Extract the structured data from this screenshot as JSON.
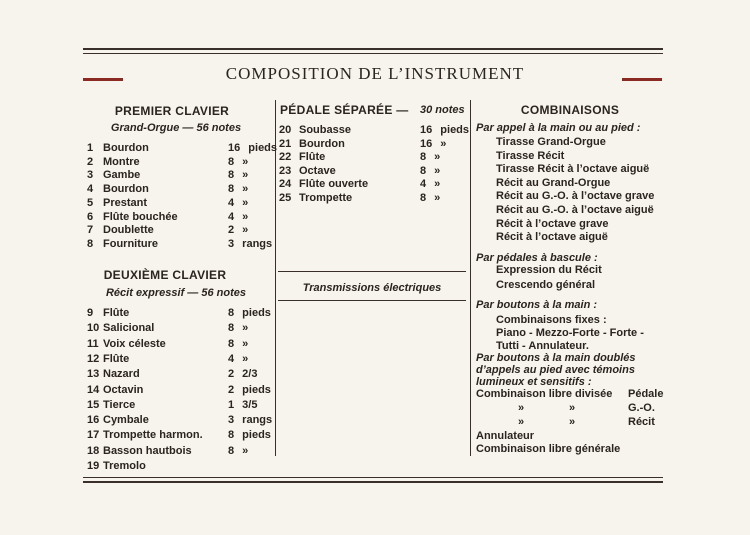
{
  "title": "COMPOSITION DE L’INSTRUMENT",
  "premier_clavier": {
    "heading": "PREMIER CLAVIER",
    "subtitle": "Grand-Orgue — 56 notes",
    "stops": [
      [
        1,
        "Bourdon",
        "16 pieds"
      ],
      [
        2,
        "Montre",
        "8 »"
      ],
      [
        3,
        "Gambe",
        "8 »"
      ],
      [
        4,
        "Bourdon",
        "8 »"
      ],
      [
        5,
        "Prestant",
        "4 »"
      ],
      [
        6,
        "Flûte bouchée",
        "4 »"
      ],
      [
        7,
        "Doublette",
        "2 »"
      ],
      [
        8,
        "Fourniture",
        "3 rangs"
      ]
    ]
  },
  "deuxieme_clavier": {
    "heading": "DEUXIÈME CLAVIER",
    "subtitle": "Récit expressif — 56 notes",
    "stops": [
      [
        9,
        "Flûte",
        "8 pieds"
      ],
      [
        10,
        "Salicional",
        "8 »"
      ],
      [
        11,
        "Voix céleste",
        "8 »"
      ],
      [
        12,
        "Flûte",
        "4 »"
      ],
      [
        13,
        "Nazard",
        "2 2/3"
      ],
      [
        14,
        "Octavin",
        "2 pieds"
      ],
      [
        15,
        "Tierce",
        "1 3/5"
      ],
      [
        16,
        "Cymbale",
        "3 rangs"
      ],
      [
        17,
        "Trompette harmon.",
        "8 pieds"
      ],
      [
        18,
        "Basson hautbois",
        "8 »"
      ],
      [
        19,
        "Tremolo",
        null
      ]
    ]
  },
  "pedale": {
    "heading": "PÉDALE SÉPARÉE —",
    "subtitle": "30 notes",
    "stops": [
      [
        20,
        "Soubasse",
        "16 pieds"
      ],
      [
        21,
        "Bourdon",
        "16 »"
      ],
      [
        22,
        "Flûte",
        "8 »"
      ],
      [
        23,
        "Octave",
        "8 »"
      ],
      [
        24,
        "Flûte ouverte",
        "4 »"
      ],
      [
        25,
        "Trompette",
        "8 »"
      ]
    ],
    "note": "Transmissions électriques"
  },
  "combinaisons": {
    "heading": "COMBINAISONS",
    "groups": [
      {
        "label": "Par appel à la main ou au pied :",
        "items": [
          "Tirasse Grand-Orgue",
          "Tirasse Récit",
          "Tirasse Récit à l’octave aiguë",
          "Récit au Grand-Orgue",
          "Récit au G.-O. à l’octave grave",
          "Récit au G.-O. à l’octave aiguë",
          "Récit à l’octave grave",
          "Récit à l’octave aiguë"
        ]
      },
      {
        "label": "Par pédales à bascule :",
        "items": [
          "Expression du Récit",
          "Crescendo général"
        ]
      },
      {
        "label": "Par boutons à la main :",
        "items": [
          "Combinaisons fixes :",
          "Piano - Mezzo-Forte - Forte -",
          "Tutti - Annulateur."
        ]
      }
    ],
    "last_group": {
      "label": "Par boutons à la main doublés d’appels au pied avec témoins lumineux et sensitifs :",
      "rows": [
        [
          "Combinaison libre divisée",
          "Pédale"
        ],
        [
          "»",
          "»",
          "G.-O."
        ],
        [
          "»",
          "»",
          "Récit"
        ]
      ],
      "items": [
        "Annulateur",
        "Combinaison libre générale"
      ]
    }
  }
}
